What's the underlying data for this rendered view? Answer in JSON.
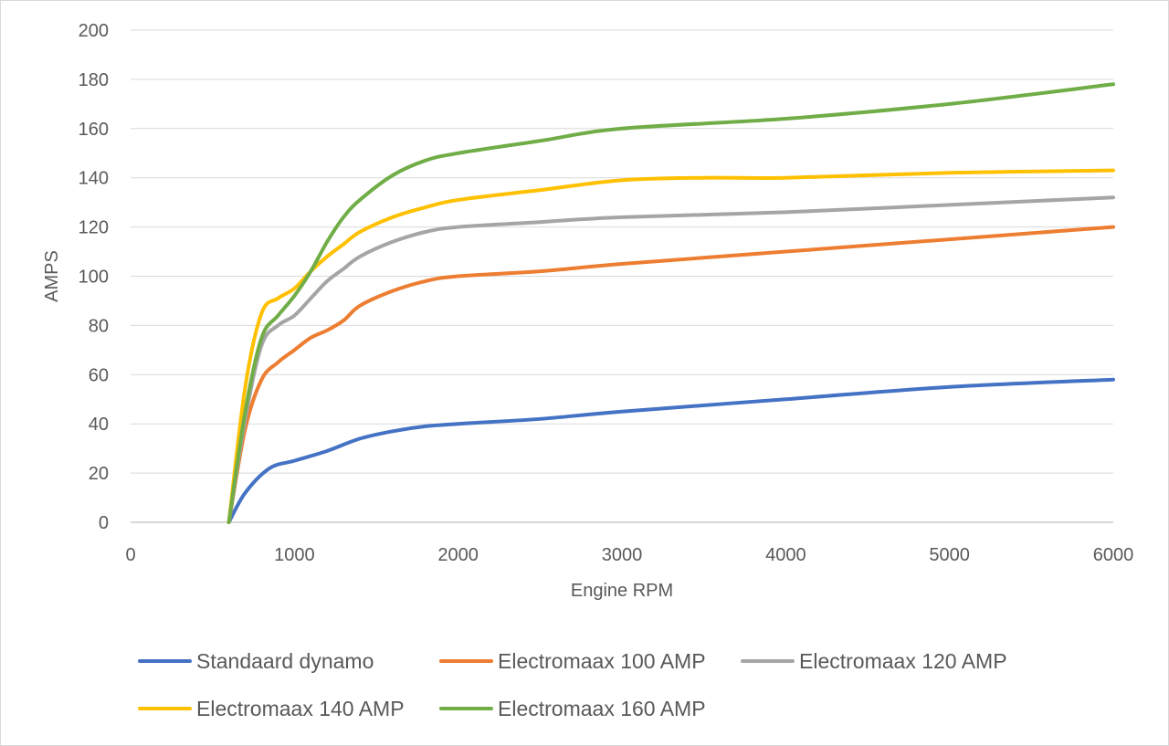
{
  "chart_data": {
    "type": "line",
    "xlabel": "Engine RPM",
    "ylabel": "AMPS",
    "xlim": [
      0,
      6000
    ],
    "ylim": [
      0,
      200
    ],
    "xticks": [
      0,
      1000,
      2000,
      3000,
      4000,
      5000,
      6000
    ],
    "yticks": [
      0,
      20,
      40,
      60,
      80,
      100,
      120,
      140,
      160,
      180,
      200
    ],
    "grid": "horizontal",
    "legend": "bottom",
    "series": [
      {
        "name": "Standaard dynamo",
        "color": "#4472c4",
        "x": [
          600,
          700,
          850,
          1000,
          1200,
          1400,
          1600,
          1800,
          2000,
          2500,
          3000,
          4000,
          5000,
          6000
        ],
        "y": [
          0,
          12,
          22,
          25,
          29,
          34,
          37,
          39,
          40,
          42,
          45,
          50,
          55,
          58
        ]
      },
      {
        "name": "Electromaax 100 AMP",
        "color": "#ed7d31",
        "x": [
          600,
          700,
          800,
          900,
          1000,
          1100,
          1200,
          1300,
          1400,
          1600,
          1800,
          2000,
          2500,
          3000,
          4000,
          5000,
          6000
        ],
        "y": [
          0,
          38,
          58,
          65,
          70,
          75,
          78,
          82,
          88,
          94,
          98,
          100,
          102,
          105,
          110,
          115,
          120
        ]
      },
      {
        "name": "Electromaax 120 AMP",
        "color": "#a5a5a5",
        "x": [
          600,
          700,
          800,
          900,
          1000,
          1100,
          1200,
          1300,
          1400,
          1600,
          1800,
          2000,
          2500,
          3000,
          4000,
          5000,
          6000
        ],
        "y": [
          0,
          42,
          72,
          80,
          84,
          91,
          98,
          103,
          108,
          114,
          118,
          120,
          122,
          124,
          126,
          129,
          132
        ]
      },
      {
        "name": "Electromaax 140 AMP",
        "color": "#ffc000",
        "x": [
          600,
          700,
          800,
          900,
          1000,
          1100,
          1200,
          1300,
          1400,
          1600,
          1800,
          2000,
          2500,
          3000,
          3500,
          4000,
          5000,
          6000
        ],
        "y": [
          0,
          55,
          85,
          91,
          95,
          102,
          108,
          113,
          118,
          124,
          128,
          131,
          135,
          139,
          140,
          140,
          142,
          143
        ]
      },
      {
        "name": "Electromaax 160 AMP",
        "color": "#70ad47",
        "x": [
          600,
          700,
          800,
          900,
          1000,
          1100,
          1200,
          1300,
          1400,
          1600,
          1800,
          2000,
          2500,
          3000,
          4000,
          5000,
          6000
        ],
        "y": [
          0,
          45,
          75,
          84,
          92,
          102,
          114,
          124,
          131,
          141,
          147,
          150,
          155,
          160,
          164,
          170,
          178
        ]
      }
    ]
  }
}
